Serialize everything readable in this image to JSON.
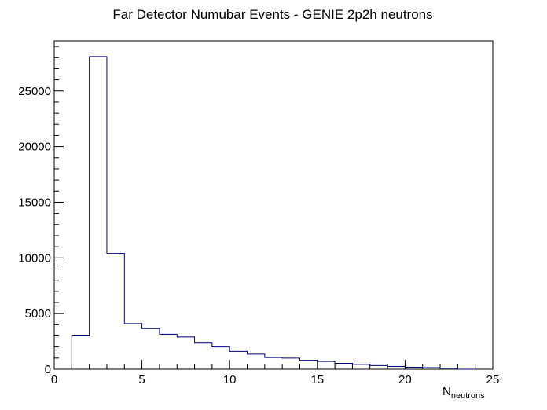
{
  "chart_data": {
    "type": "bar",
    "title": "Far Detector Numubar Events - GENIE 2p2h neutrons",
    "xlabel_main": "N",
    "xlabel_sub": "neutrons",
    "ylabel": "",
    "xlim": [
      0,
      25
    ],
    "ylim": [
      0,
      29500
    ],
    "x_ticks": [
      0,
      5,
      10,
      15,
      20,
      25
    ],
    "y_ticks": [
      0,
      5000,
      10000,
      15000,
      20000,
      25000
    ],
    "bin_width": 1,
    "bins": [
      {
        "x": 1,
        "value": 3000
      },
      {
        "x": 2,
        "value": 28100
      },
      {
        "x": 3,
        "value": 10400
      },
      {
        "x": 4,
        "value": 4100
      },
      {
        "x": 5,
        "value": 3650
      },
      {
        "x": 6,
        "value": 3150
      },
      {
        "x": 7,
        "value": 2900
      },
      {
        "x": 8,
        "value": 2350
      },
      {
        "x": 9,
        "value": 2000
      },
      {
        "x": 10,
        "value": 1600
      },
      {
        "x": 11,
        "value": 1350
      },
      {
        "x": 12,
        "value": 1050
      },
      {
        "x": 13,
        "value": 1000
      },
      {
        "x": 14,
        "value": 800
      },
      {
        "x": 15,
        "value": 700
      },
      {
        "x": 16,
        "value": 530
      },
      {
        "x": 17,
        "value": 430
      },
      {
        "x": 18,
        "value": 330
      },
      {
        "x": 19,
        "value": 250
      },
      {
        "x": 20,
        "value": 180
      },
      {
        "x": 21,
        "value": 140
      },
      {
        "x": 22,
        "value": 90
      },
      {
        "x": 23,
        "value": 0
      }
    ],
    "line_color": "#00007f",
    "axis_color": "#000000",
    "grid": false,
    "legend": "none"
  }
}
